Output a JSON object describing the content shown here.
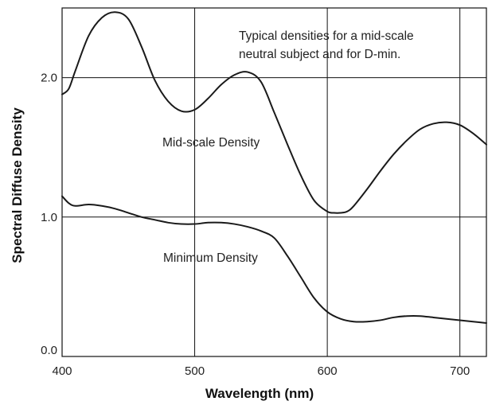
{
  "chart_data": {
    "type": "line",
    "xlabel": "Wavelength (nm)",
    "ylabel": "Spectral Diffuse Density",
    "xlim": [
      400,
      720
    ],
    "ylim": [
      0.0,
      2.5
    ],
    "xticks": [
      400,
      500,
      600,
      700
    ],
    "xtick_labels": [
      "400",
      "500",
      "600",
      "700"
    ],
    "yticks": [
      0.0,
      1.0,
      2.0
    ],
    "ytick_labels": [
      "0.0",
      "1.0",
      "2.0"
    ],
    "grid": true,
    "annotation": [
      "Typical densities for a mid-scale",
      "neutral subject and for D-min."
    ],
    "series": [
      {
        "name": "Mid-scale Density",
        "x": [
          400,
          405,
          410,
          420,
          430,
          440,
          450,
          460,
          470,
          480,
          490,
          500,
          510,
          520,
          530,
          540,
          550,
          560,
          570,
          580,
          590,
          600,
          605,
          610,
          615,
          620,
          630,
          640,
          650,
          660,
          670,
          680,
          690,
          700,
          710,
          720
        ],
        "y": [
          1.88,
          1.92,
          2.05,
          2.3,
          2.43,
          2.47,
          2.42,
          2.22,
          1.98,
          1.83,
          1.76,
          1.77,
          1.85,
          1.95,
          2.02,
          2.04,
          1.97,
          1.75,
          1.52,
          1.3,
          1.12,
          1.04,
          1.03,
          1.03,
          1.04,
          1.08,
          1.2,
          1.33,
          1.45,
          1.55,
          1.63,
          1.67,
          1.68,
          1.66,
          1.6,
          1.52
        ],
        "label": "Mid-scale Density"
      },
      {
        "name": "Minimum Density",
        "x": [
          400,
          405,
          410,
          420,
          430,
          440,
          450,
          460,
          470,
          480,
          490,
          500,
          510,
          520,
          530,
          540,
          550,
          560,
          570,
          580,
          590,
          600,
          610,
          620,
          630,
          640,
          650,
          660,
          670,
          680,
          690,
          700,
          710,
          720
        ],
        "y": [
          1.15,
          1.1,
          1.08,
          1.09,
          1.08,
          1.06,
          1.03,
          1.0,
          0.98,
          0.96,
          0.95,
          0.95,
          0.96,
          0.96,
          0.95,
          0.93,
          0.9,
          0.85,
          0.72,
          0.57,
          0.42,
          0.32,
          0.27,
          0.25,
          0.25,
          0.26,
          0.28,
          0.29,
          0.29,
          0.28,
          0.27,
          0.26,
          0.25,
          0.24
        ],
        "label": "Minimum Density"
      }
    ]
  }
}
